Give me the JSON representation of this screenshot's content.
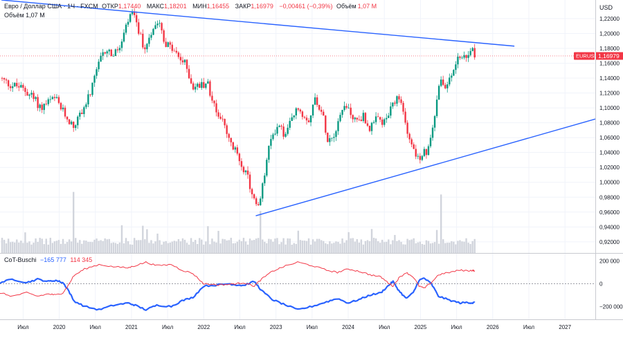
{
  "legend": {
    "title": "Евро / Доллар США · 1Ч · FXCM",
    "open_label": "ОТКР",
    "open": "1,17440",
    "high_label": "МАКС",
    "high": "1,18201",
    "low_label": "МИН",
    "low": "1,16455",
    "close_label": "ЗАКР",
    "close": "1,16979",
    "change": "−0,00461 (−0,39%)",
    "volume_label": "Объём",
    "volume": "1,07 M",
    "volume_row": "Объём 1,07 M"
  },
  "currency": "USD",
  "price_tag": {
    "symbol": "EURUSD",
    "value": "1,16979"
  },
  "cot": {
    "name": "CoT-Buschi",
    "value_blue": "−165 777",
    "value_red": "114 345",
    "axis_ticks": [
      "200000",
      "0",
      "−200000"
    ]
  },
  "colors": {
    "up": "#089981",
    "down": "#f23645",
    "trendline": "#2962ff",
    "cot_blue": "#2962ff",
    "cot_red": "#f23645"
  },
  "chart_data": {
    "type": "candlestick",
    "instrument": "EURUSD",
    "y_axis_ticks": [
      "1,22000",
      "1,20000",
      "1,18000",
      "1,16000",
      "1,14000",
      "1,12000",
      "1,10000",
      "1,08000",
      "1,06000",
      "1,04000",
      "1,02000",
      "1,00000",
      "0,98000",
      "0,96000",
      "0,94000",
      "0,92000"
    ],
    "ylim": [
      0.905,
      1.245
    ],
    "x_axis_ticks": [
      "Июл",
      "2020",
      "Июл",
      "2021",
      "Июл",
      "2022",
      "Июл",
      "2023",
      "Июл",
      "2024",
      "Июл",
      "2025",
      "Июл",
      "2026",
      "Июл",
      "2027"
    ],
    "x_tick_dates": [
      2019.5,
      2020.0,
      2020.5,
      2021.0,
      2021.5,
      2022.0,
      2022.5,
      2023.0,
      2023.5,
      2024.0,
      2024.5,
      2025.0,
      2025.5,
      2026.0,
      2026.5,
      2027.0
    ],
    "xlim": [
      2019.18,
      2027.42
    ],
    "last_close": 1.16979,
    "price_path": [
      [
        2019.18,
        1.14
      ],
      [
        2019.3,
        1.132
      ],
      [
        2019.45,
        1.128
      ],
      [
        2019.6,
        1.118
      ],
      [
        2019.75,
        1.1
      ],
      [
        2019.85,
        1.108
      ],
      [
        2019.95,
        1.112
      ],
      [
        2020.05,
        1.095
      ],
      [
        2020.12,
        1.085
      ],
      [
        2020.2,
        1.075
      ],
      [
        2020.28,
        1.09
      ],
      [
        2020.38,
        1.108
      ],
      [
        2020.45,
        1.125
      ],
      [
        2020.55,
        1.16
      ],
      [
        2020.65,
        1.18
      ],
      [
        2020.75,
        1.17
      ],
      [
        2020.85,
        1.183
      ],
      [
        2020.95,
        1.215
      ],
      [
        2021.0,
        1.228
      ],
      [
        2021.08,
        1.21
      ],
      [
        2021.18,
        1.178
      ],
      [
        2021.28,
        1.205
      ],
      [
        2021.38,
        1.222
      ],
      [
        2021.45,
        1.19
      ],
      [
        2021.55,
        1.18
      ],
      [
        2021.65,
        1.168
      ],
      [
        2021.75,
        1.158
      ],
      [
        2021.85,
        1.128
      ],
      [
        2021.95,
        1.13
      ],
      [
        2022.05,
        1.135
      ],
      [
        2022.15,
        1.1
      ],
      [
        2022.25,
        1.085
      ],
      [
        2022.35,
        1.055
      ],
      [
        2022.45,
        1.04
      ],
      [
        2022.55,
        1.02
      ],
      [
        2022.62,
        1.002
      ],
      [
        2022.7,
        0.975
      ],
      [
        2022.75,
        0.964
      ],
      [
        2022.8,
        0.985
      ],
      [
        2022.88,
        1.035
      ],
      [
        2022.95,
        1.065
      ],
      [
        2023.05,
        1.078
      ],
      [
        2023.12,
        1.06
      ],
      [
        2023.2,
        1.08
      ],
      [
        2023.3,
        1.1
      ],
      [
        2023.38,
        1.09
      ],
      [
        2023.46,
        1.085
      ],
      [
        2023.55,
        1.115
      ],
      [
        2023.65,
        1.088
      ],
      [
        2023.72,
        1.058
      ],
      [
        2023.8,
        1.065
      ],
      [
        2023.9,
        1.095
      ],
      [
        2023.97,
        1.105
      ],
      [
        2024.05,
        1.09
      ],
      [
        2024.12,
        1.082
      ],
      [
        2024.2,
        1.09
      ],
      [
        2024.3,
        1.072
      ],
      [
        2024.4,
        1.085
      ],
      [
        2024.5,
        1.08
      ],
      [
        2024.58,
        1.095
      ],
      [
        2024.66,
        1.11
      ],
      [
        2024.72,
        1.11
      ],
      [
        2024.8,
        1.078
      ],
      [
        2024.88,
        1.05
      ],
      [
        2024.95,
        1.035
      ],
      [
        2025.0,
        1.025
      ],
      [
        2025.05,
        1.04
      ],
      [
        2025.1,
        1.038
      ],
      [
        2025.18,
        1.08
      ],
      [
        2025.25,
        1.135
      ],
      [
        2025.32,
        1.13
      ],
      [
        2025.4,
        1.135
      ],
      [
        2025.45,
        1.15
      ],
      [
        2025.52,
        1.17
      ],
      [
        2025.6,
        1.165
      ],
      [
        2025.66,
        1.17
      ],
      [
        2025.72,
        1.175
      ],
      [
        2025.75,
        1.17
      ]
    ],
    "volume_spikes": [
      [
        2020.2,
        0.96
      ],
      [
        2022.78,
        0.66
      ],
      [
        2025.28,
        0.92
      ]
    ],
    "trendlines": [
      {
        "from": [
          2019.2,
          1.245
        ],
        "to": [
          2026.3,
          1.183
        ]
      },
      {
        "from": [
          2022.72,
          0.955
        ],
        "to": [
          2027.42,
          1.085
        ]
      }
    ],
    "cot_series": [
      {
        "values": [
          [
            2019.18,
            10
          ],
          [
            2019.35,
            40
          ],
          [
            2019.55,
            10
          ],
          [
            2019.7,
            40
          ],
          [
            2019.85,
            20
          ],
          [
            2019.95,
            30
          ],
          [
            2020.05,
            10
          ],
          [
            2020.12,
            -50
          ],
          [
            2020.2,
            -150
          ],
          [
            2020.35,
            -200
          ],
          [
            2020.55,
            -230
          ],
          [
            2020.75,
            -190
          ],
          [
            2020.95,
            -170
          ],
          [
            2021.05,
            -190
          ],
          [
            2021.2,
            -230
          ],
          [
            2021.35,
            -190
          ],
          [
            2021.55,
            -200
          ],
          [
            2021.7,
            -150
          ],
          [
            2021.85,
            -120
          ],
          [
            2022.0,
            -20
          ],
          [
            2022.2,
            -10
          ],
          [
            2022.35,
            0
          ],
          [
            2022.45,
            -10
          ],
          [
            2022.55,
            -15
          ],
          [
            2022.7,
            20
          ],
          [
            2022.8,
            -60
          ],
          [
            2022.95,
            -140
          ],
          [
            2023.1,
            -180
          ],
          [
            2023.3,
            -230
          ],
          [
            2023.5,
            -200
          ],
          [
            2023.7,
            -160
          ],
          [
            2023.85,
            -130
          ],
          [
            2024.0,
            -170
          ],
          [
            2024.15,
            -140
          ],
          [
            2024.3,
            -100
          ],
          [
            2024.45,
            -80
          ],
          [
            2024.55,
            -20
          ],
          [
            2024.62,
            20
          ],
          [
            2024.7,
            -60
          ],
          [
            2024.8,
            -130
          ],
          [
            2024.9,
            -80
          ],
          [
            2024.98,
            30
          ],
          [
            2025.05,
            50
          ],
          [
            2025.15,
            0
          ],
          [
            2025.25,
            -110
          ],
          [
            2025.4,
            -145
          ],
          [
            2025.55,
            -170
          ],
          [
            2025.65,
            -165
          ],
          [
            2025.72,
            -170
          ],
          [
            2025.75,
            -165.8
          ]
        ]
      },
      {
        "values": [
          [
            2019.18,
            -80
          ],
          [
            2019.35,
            -110
          ],
          [
            2019.55,
            -80
          ],
          [
            2019.7,
            -110
          ],
          [
            2019.85,
            -90
          ],
          [
            2019.95,
            -100
          ],
          [
            2020.05,
            -80
          ],
          [
            2020.12,
            -20
          ],
          [
            2020.2,
            70
          ],
          [
            2020.35,
            130
          ],
          [
            2020.55,
            170
          ],
          [
            2020.75,
            150
          ],
          [
            2020.95,
            140
          ],
          [
            2021.05,
            160
          ],
          [
            2021.2,
            190
          ],
          [
            2021.35,
            160
          ],
          [
            2021.55,
            170
          ],
          [
            2021.7,
            120
          ],
          [
            2021.85,
            90
          ],
          [
            2022.0,
            0
          ],
          [
            2022.2,
            -10
          ],
          [
            2022.35,
            -5
          ],
          [
            2022.45,
            0
          ],
          [
            2022.55,
            10
          ],
          [
            2022.7,
            -20
          ],
          [
            2022.8,
            40
          ],
          [
            2022.95,
            110
          ],
          [
            2023.1,
            150
          ],
          [
            2023.3,
            190
          ],
          [
            2023.5,
            160
          ],
          [
            2023.7,
            120
          ],
          [
            2023.85,
            100
          ],
          [
            2024.0,
            130
          ],
          [
            2024.15,
            110
          ],
          [
            2024.3,
            80
          ],
          [
            2024.45,
            60
          ],
          [
            2024.55,
            10
          ],
          [
            2024.62,
            -20
          ],
          [
            2024.7,
            50
          ],
          [
            2024.8,
            100
          ],
          [
            2024.9,
            60
          ],
          [
            2024.98,
            -20
          ],
          [
            2025.05,
            -40
          ],
          [
            2025.15,
            10
          ],
          [
            2025.25,
            80
          ],
          [
            2025.4,
            100
          ],
          [
            2025.55,
            120
          ],
          [
            2025.65,
            115
          ],
          [
            2025.72,
            118
          ],
          [
            2025.75,
            114.3
          ]
        ]
      }
    ]
  }
}
